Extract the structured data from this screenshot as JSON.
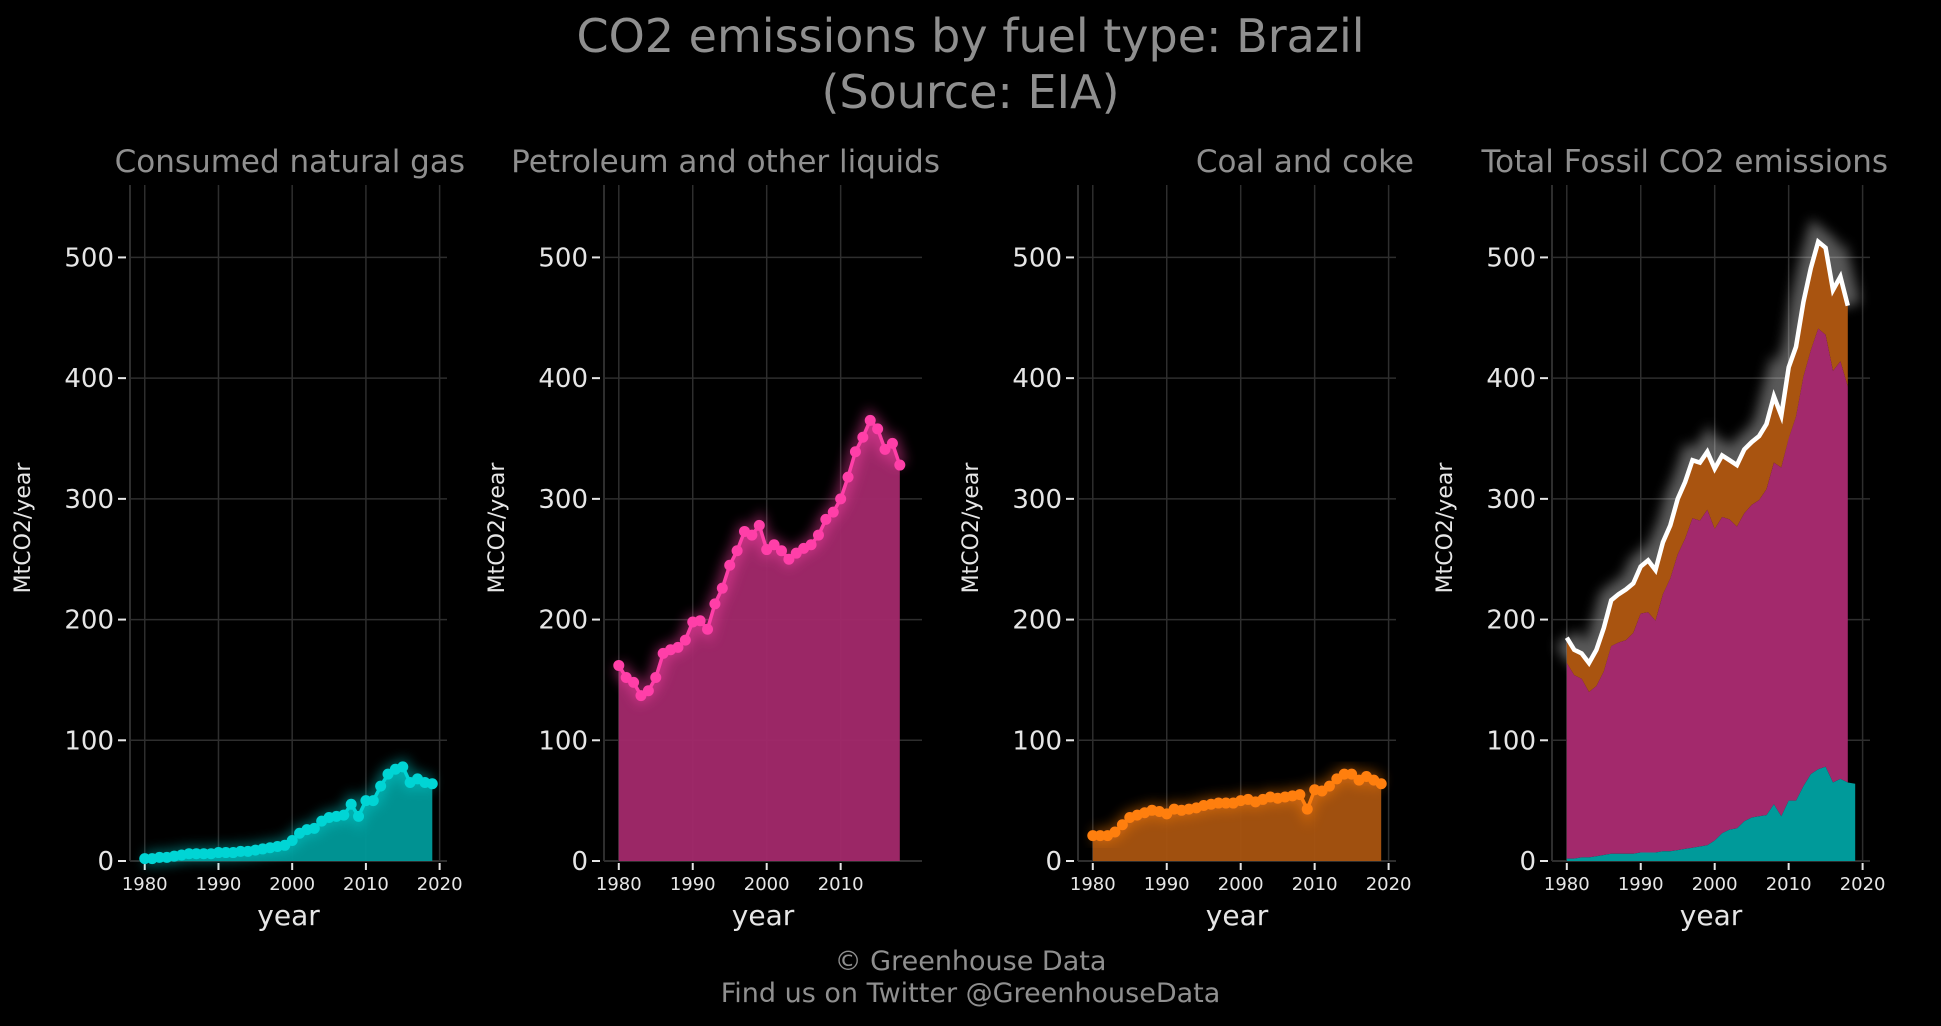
{
  "title": "CO2 emissions by fuel type: Brazil",
  "subtitle": "(Source: EIA)",
  "footer": {
    "credit": "© Greenhouse Data",
    "twitter": "Find us on Twitter @GreenhouseData"
  },
  "colors": {
    "gas": "#00d5d5",
    "petroleum": "#ff3fa8",
    "coal": "#ff7f0e",
    "total": "#ffffff",
    "grid": "#2e2e2e",
    "text": "#e6e6e6",
    "subtitle": "#8f8f8f"
  },
  "chart_data": [
    {
      "type": "area",
      "title": "Consumed natural gas",
      "xlabel": "year",
      "ylabel": "MtCO2/year",
      "xlim": [
        1978,
        2021
      ],
      "ylim": [
        0,
        560
      ],
      "xticks": [
        1980,
        1990,
        2000,
        2010,
        2020
      ],
      "yticks": [
        0,
        100,
        200,
        300,
        400,
        500
      ],
      "grid": true,
      "series": [
        {
          "key": "gas",
          "x": [
            1980,
            1981,
            1982,
            1983,
            1984,
            1985,
            1986,
            1987,
            1988,
            1989,
            1990,
            1991,
            1992,
            1993,
            1994,
            1995,
            1996,
            1997,
            1998,
            1999,
            2000,
            2001,
            2002,
            2003,
            2004,
            2005,
            2006,
            2007,
            2008,
            2009,
            2010,
            2011,
            2012,
            2013,
            2014,
            2015,
            2016,
            2017,
            2018,
            2019
          ],
          "values": [
            2,
            2,
            3,
            3,
            4,
            5,
            6,
            6,
            6,
            6,
            7,
            7,
            7,
            8,
            8,
            9,
            10,
            11,
            12,
            13,
            17,
            23,
            26,
            27,
            33,
            36,
            37,
            38,
            47,
            37,
            50,
            50,
            62,
            72,
            76,
            78,
            65,
            68,
            65,
            64
          ]
        }
      ]
    },
    {
      "type": "area",
      "title": "Petroleum and other liquids",
      "xlabel": "year",
      "ylabel": "MtCO2/year",
      "xlim": [
        1978,
        2021
      ],
      "ylim": [
        0,
        560
      ],
      "xticks": [
        1980,
        1990,
        2000,
        2010
      ],
      "yticks": [
        0,
        100,
        200,
        300,
        400,
        500
      ],
      "grid": true,
      "series": [
        {
          "key": "petroleum",
          "x": [
            1980,
            1981,
            1982,
            1983,
            1984,
            1985,
            1986,
            1987,
            1988,
            1989,
            1990,
            1991,
            1992,
            1993,
            1994,
            1995,
            1996,
            1997,
            1998,
            1999,
            2000,
            2001,
            2002,
            2003,
            2004,
            2005,
            2006,
            2007,
            2008,
            2009,
            2010,
            2011,
            2012,
            2013,
            2014,
            2015,
            2016,
            2017,
            2018
          ],
          "values": [
            162,
            152,
            148,
            137,
            141,
            152,
            172,
            175,
            177,
            183,
            198,
            199,
            192,
            213,
            226,
            245,
            257,
            273,
            270,
            278,
            258,
            262,
            257,
            250,
            255,
            259,
            262,
            270,
            283,
            289,
            300,
            318,
            339,
            351,
            365,
            358,
            341,
            346,
            328
          ]
        }
      ]
    },
    {
      "type": "area",
      "title": "Coal and coke",
      "xlabel": "year",
      "ylabel": "MtCO2/year",
      "xlim": [
        1978,
        2021
      ],
      "ylim": [
        0,
        560
      ],
      "xticks": [
        1980,
        1990,
        2000,
        2010,
        2020
      ],
      "yticks": [
        0,
        100,
        200,
        300,
        400,
        500
      ],
      "grid": true,
      "series": [
        {
          "key": "coal",
          "x": [
            1980,
            1981,
            1982,
            1983,
            1984,
            1985,
            1986,
            1987,
            1988,
            1989,
            1990,
            1991,
            1992,
            1993,
            1994,
            1995,
            1996,
            1997,
            1998,
            1999,
            2000,
            2001,
            2002,
            2003,
            2004,
            2005,
            2006,
            2007,
            2008,
            2009,
            2010,
            2011,
            2012,
            2013,
            2014,
            2015,
            2016,
            2017,
            2018,
            2019
          ],
          "values": [
            21,
            21,
            21,
            24,
            30,
            36,
            38,
            40,
            42,
            41,
            39,
            43,
            42,
            43,
            44,
            46,
            47,
            48,
            48,
            48,
            50,
            51,
            49,
            51,
            53,
            52,
            53,
            54,
            55,
            43,
            59,
            58,
            62,
            68,
            72,
            72,
            67,
            70,
            67,
            64
          ]
        }
      ]
    },
    {
      "type": "area",
      "title": "Total Fossil CO2 emissions",
      "xlabel": "year",
      "ylabel": "MtCO2/year",
      "xlim": [
        1978,
        2021
      ],
      "ylim": [
        0,
        560
      ],
      "xticks": [
        1980,
        1990,
        2000,
        2010,
        2020
      ],
      "yticks": [
        0,
        100,
        200,
        300,
        400,
        500
      ],
      "grid": true,
      "stacked": true,
      "x": [
        1980,
        1981,
        1982,
        1983,
        1984,
        1985,
        1986,
        1987,
        1988,
        1989,
        1990,
        1991,
        1992,
        1993,
        1994,
        1995,
        1996,
        1997,
        1998,
        1999,
        2000,
        2001,
        2002,
        2003,
        2004,
        2005,
        2006,
        2007,
        2008,
        2009,
        2010,
        2011,
        2012,
        2013,
        2014,
        2015,
        2016,
        2017,
        2018
      ],
      "stack_order": [
        "gas",
        "petroleum",
        "coal"
      ],
      "total": [
        185,
        175,
        172,
        164,
        175,
        193,
        216,
        221,
        225,
        230,
        244,
        249,
        241,
        264,
        278,
        300,
        314,
        332,
        330,
        339,
        325,
        336,
        332,
        328,
        341,
        347,
        352,
        362,
        385,
        369,
        409,
        426,
        463,
        491,
        513,
        508,
        473,
        484,
        460
      ]
    }
  ]
}
